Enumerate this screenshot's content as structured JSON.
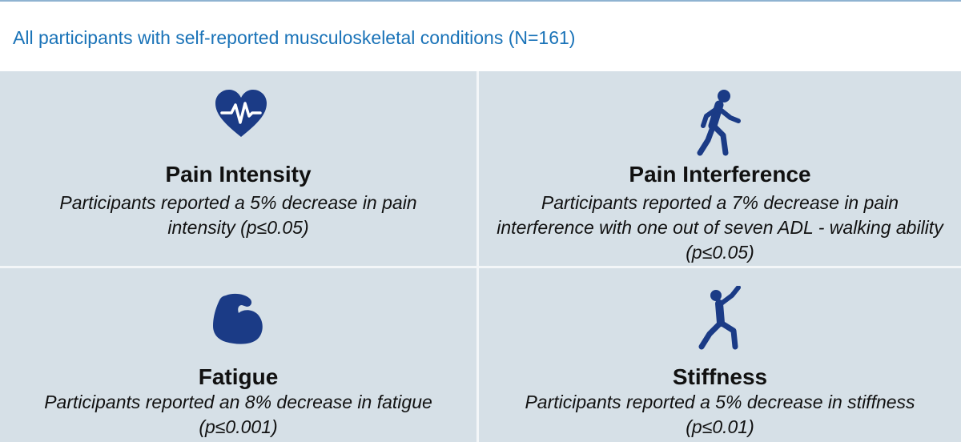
{
  "header": {
    "title": "All participants with self-reported musculoskeletal conditions (N=161)"
  },
  "theme": {
    "accent_blue": "#1a73b8",
    "icon_navy": "#1b3b86",
    "panel_bg": "#d6e0e7"
  },
  "cards": [
    {
      "icon": "heart-pulse-icon",
      "title": "Pain Intensity",
      "description": "Participants reported a 5% decrease in pain intensity (p≤0.05)"
    },
    {
      "icon": "walking-person-icon",
      "title": "Pain Interference",
      "description": "Participants reported a 7% decrease in pain interference with one out of seven ADL - walking ability (p≤0.05)"
    },
    {
      "icon": "flexed-arm-icon",
      "title": "Fatigue",
      "description": "Participants reported an 8% decrease in fatigue (p≤0.001)"
    },
    {
      "icon": "stretching-person-icon",
      "title": "Stiffness",
      "description": "Participants reported a 5% decrease in stiffness (p≤0.01)"
    }
  ]
}
